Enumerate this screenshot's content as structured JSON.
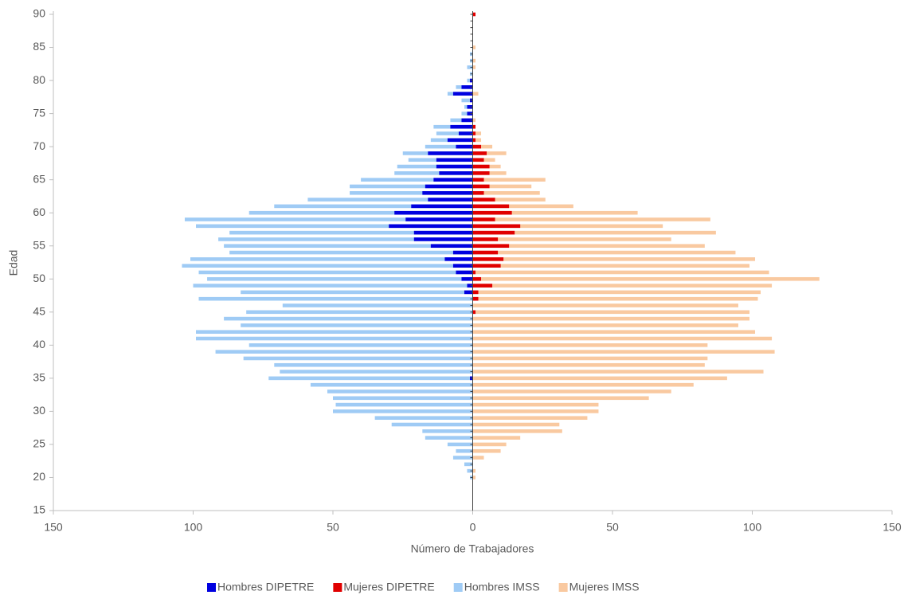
{
  "chart_data": {
    "type": "bar",
    "orientation": "horizontal",
    "x_label": "Número de Trabajadores",
    "y_label": "Edad",
    "y": [
      20,
      21,
      22,
      23,
      24,
      25,
      26,
      27,
      28,
      29,
      30,
      31,
      32,
      33,
      34,
      35,
      36,
      37,
      38,
      39,
      40,
      41,
      42,
      43,
      44,
      45,
      46,
      47,
      48,
      49,
      50,
      51,
      52,
      53,
      54,
      55,
      56,
      57,
      58,
      59,
      60,
      61,
      62,
      63,
      64,
      65,
      66,
      67,
      68,
      69,
      70,
      71,
      72,
      73,
      74,
      75,
      76,
      77,
      78,
      79,
      80,
      81,
      82,
      83,
      84,
      85,
      86,
      87,
      88,
      89,
      90
    ],
    "series": [
      {
        "name": "Hombres DIPETRE",
        "color": "#0000e0",
        "layer": "front",
        "values": [
          0,
          0,
          0,
          0,
          0,
          0,
          0,
          0,
          0,
          0,
          0,
          0,
          0,
          0,
          0,
          -1,
          0,
          0,
          0,
          0,
          0,
          0,
          0,
          0,
          0,
          0,
          0,
          0,
          -3,
          -2,
          -4,
          -6,
          -7,
          -10,
          -7,
          -15,
          -21,
          -21,
          -30,
          -24,
          -28,
          -22,
          -16,
          -18,
          -17,
          -14,
          -12,
          -13,
          -13,
          -16,
          -6,
          -9,
          -5,
          -8,
          -4,
          -2,
          -2,
          -1,
          -7,
          -4,
          -1,
          0,
          0,
          0,
          0,
          0,
          0,
          0,
          0,
          0,
          0
        ]
      },
      {
        "name": "Mujeres DIPETRE",
        "color": "#e00000",
        "layer": "front",
        "values": [
          0,
          0,
          0,
          0,
          0,
          0,
          0,
          0,
          0,
          0,
          0,
          0,
          0,
          0,
          0,
          0,
          0,
          0,
          0,
          0,
          0,
          0,
          0,
          0,
          0,
          1,
          0,
          2,
          2,
          7,
          3,
          1,
          10,
          11,
          9,
          13,
          9,
          15,
          17,
          8,
          14,
          13,
          8,
          4,
          6,
          4,
          6,
          6,
          4,
          5,
          3,
          1,
          1,
          1,
          0,
          0,
          0,
          0,
          0,
          0,
          0,
          0,
          0,
          0,
          0,
          0,
          0,
          0,
          0,
          0,
          1
        ]
      },
      {
        "name": "Hombres IMSS",
        "color": "#9fcbf5",
        "layer": "back",
        "values": [
          -1,
          -2,
          -3,
          -7,
          -6,
          -9,
          -17,
          -18,
          -29,
          -35,
          -50,
          -49,
          -50,
          -52,
          -58,
          -73,
          -69,
          -71,
          -82,
          -92,
          -80,
          -99,
          -99,
          -83,
          -89,
          -81,
          -68,
          -98,
          -83,
          -100,
          -95,
          -98,
          -104,
          -101,
          -87,
          -89,
          -91,
          -87,
          -99,
          -103,
          -80,
          -71,
          -59,
          -44,
          -44,
          -40,
          -28,
          -27,
          -23,
          -25,
          -17,
          -15,
          -13,
          -14,
          -8,
          -4,
          -3,
          -4,
          -9,
          -6,
          -2,
          -1,
          -2,
          -1,
          -1,
          0,
          0,
          0,
          0,
          0,
          0
        ]
      },
      {
        "name": "Mujeres IMSS",
        "color": "#f9c9a0",
        "layer": "back",
        "values": [
          1,
          1,
          0,
          4,
          10,
          12,
          17,
          32,
          31,
          41,
          45,
          45,
          63,
          71,
          79,
          91,
          104,
          83,
          84,
          108,
          84,
          107,
          101,
          95,
          99,
          99,
          95,
          102,
          103,
          107,
          124,
          106,
          99,
          101,
          94,
          83,
          71,
          87,
          68,
          85,
          59,
          36,
          26,
          24,
          21,
          26,
          12,
          10,
          8,
          12,
          7,
          3,
          3,
          1,
          1,
          0,
          0,
          0,
          2,
          0,
          0,
          0,
          1,
          1,
          0,
          1,
          0,
          0,
          0,
          0,
          0
        ]
      }
    ],
    "xlim": [
      -150,
      150
    ],
    "xticks": [
      {
        "value": -150,
        "label": "150"
      },
      {
        "value": -100,
        "label": "100"
      },
      {
        "value": -50,
        "label": "50"
      },
      0,
      50,
      100,
      150
    ],
    "ylim": [
      15,
      90
    ],
    "yticks": [
      15,
      20,
      25,
      30,
      35,
      40,
      45,
      50,
      55,
      60,
      65,
      70,
      75,
      80,
      85,
      90
    ],
    "legend": "bottom"
  }
}
